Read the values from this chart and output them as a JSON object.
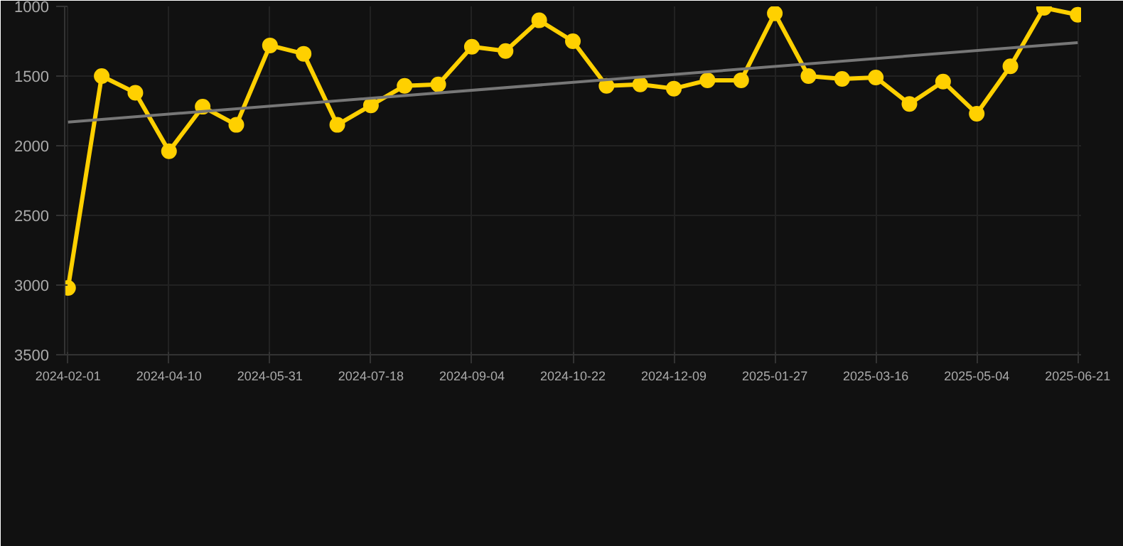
{
  "chart_data": {
    "type": "line",
    "categories": [
      "2024-02-01",
      null,
      null,
      "2024-04-10",
      null,
      null,
      "2024-05-31",
      null,
      null,
      "2024-07-18",
      null,
      null,
      "2024-09-04",
      null,
      null,
      "2024-10-22",
      null,
      null,
      "2024-12-09",
      null,
      null,
      "2025-01-27",
      null,
      null,
      "2025-03-16",
      null,
      null,
      "2025-05-04",
      null,
      null,
      "2025-06-21"
    ],
    "series": [
      {
        "color": "#ffd000",
        "values": [
          3020,
          1500,
          1620,
          2040,
          1720,
          1850,
          1280,
          1340,
          1850,
          1710,
          1570,
          1560,
          1290,
          1320,
          1100,
          1250,
          1570,
          1560,
          1590,
          1530,
          1530,
          1050,
          1500,
          1520,
          1510,
          1700,
          1540,
          1770,
          1430,
          1010,
          1060
        ]
      },
      {
        "type": "line",
        "marker": "none",
        "color": "#777777",
        "values": [
          1830,
          null,
          null,
          null,
          null,
          null,
          null,
          null,
          null,
          null,
          null,
          null,
          null,
          null,
          null,
          null,
          null,
          null,
          null,
          null,
          null,
          null,
          null,
          null,
          null,
          null,
          null,
          null,
          null,
          null,
          1260
        ]
      }
    ],
    "ylim": [
      3500,
      1000
    ],
    "yticks": [
      1000,
      1500,
      2000,
      2500,
      3000,
      3500
    ],
    "grid": true,
    "marker": "circle",
    "line_style": "solid"
  }
}
